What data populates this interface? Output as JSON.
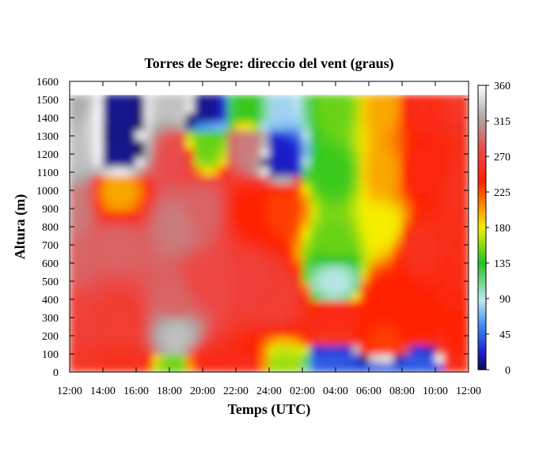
{
  "chart_data": {
    "type": "heatmap",
    "title": "Torres de Segre: direccio del vent (graus)",
    "xlabel": "Temps (UTC)",
    "ylabel": "Altura (m)",
    "x_tick_labels": [
      "12:00",
      "14:00",
      "16:00",
      "18:00",
      "20:00",
      "22:00",
      "24:00",
      "02:00",
      "04:00",
      "06:00",
      "08:00",
      "10:00",
      "12:00"
    ],
    "xlim_hours": [
      12,
      36
    ],
    "ylim": [
      0,
      1600
    ],
    "y_ticks": [
      0,
      100,
      200,
      300,
      400,
      500,
      600,
      700,
      800,
      900,
      1000,
      1100,
      1200,
      1300,
      1400,
      1500,
      1600
    ],
    "colorbar": {
      "ticks": [
        0,
        45,
        90,
        135,
        180,
        225,
        270,
        315,
        360
      ],
      "range": [
        0,
        360
      ],
      "colors": [
        "#0b0b55",
        "#1f1fd4",
        "#3a8cf0",
        "#bfe8f0",
        "#22c422",
        "#f5f000",
        "#ff2000",
        "#e94c4c",
        "#ababab",
        "#ffffff"
      ]
    },
    "grid": false,
    "data_max_height": 1525,
    "z_description_series": [
      {
        "name": "",
        "points": [
          [
            12,
            1500,
            320
          ],
          [
            12,
            1200,
            330
          ],
          [
            12,
            900,
            300
          ],
          [
            12,
            600,
            290
          ],
          [
            12,
            300,
            270
          ],
          [
            12,
            0,
            260
          ],
          [
            15,
            1450,
            10
          ],
          [
            15,
            1200,
            10
          ],
          [
            15,
            1000,
            200
          ],
          [
            15,
            700,
            290
          ],
          [
            15,
            300,
            265
          ],
          [
            15,
            0,
            255
          ],
          [
            18.5,
            1500,
            330
          ],
          [
            18.5,
            1200,
            280
          ],
          [
            18.5,
            800,
            300
          ],
          [
            18.5,
            400,
            290
          ],
          [
            18.5,
            200,
            330
          ],
          [
            18.5,
            0,
            150
          ],
          [
            20,
            1450,
            10
          ],
          [
            20,
            1250,
            150
          ],
          [
            20,
            900,
            290
          ],
          [
            20,
            500,
            275
          ],
          [
            20,
            0,
            250
          ],
          [
            23,
            1450,
            140
          ],
          [
            23,
            1250,
            300
          ],
          [
            23,
            900,
            240
          ],
          [
            23,
            500,
            270
          ],
          [
            23,
            0,
            250
          ],
          [
            24.5,
            1450,
            80
          ],
          [
            24.5,
            1200,
            20
          ],
          [
            24.5,
            900,
            230
          ],
          [
            24.5,
            400,
            265
          ],
          [
            24.5,
            0,
            160
          ],
          [
            28,
            1450,
            150
          ],
          [
            28,
            1100,
            140
          ],
          [
            28,
            700,
            150
          ],
          [
            28,
            500,
            90
          ],
          [
            28,
            300,
            250
          ],
          [
            28,
            0,
            40
          ],
          [
            31,
            1450,
            200
          ],
          [
            31,
            1100,
            200
          ],
          [
            31,
            800,
            180
          ],
          [
            31,
            400,
            240
          ],
          [
            31,
            150,
            230
          ],
          [
            31,
            0,
            40
          ],
          [
            33,
            1450,
            250
          ],
          [
            33,
            1100,
            245
          ],
          [
            33,
            700,
            255
          ],
          [
            33,
            300,
            240
          ],
          [
            33,
            0,
            40
          ],
          [
            36,
            1500,
            260
          ],
          [
            36,
            1000,
            255
          ],
          [
            36,
            600,
            250
          ],
          [
            36,
            200,
            240
          ],
          [
            36,
            0,
            250
          ]
        ]
      }
    ]
  }
}
